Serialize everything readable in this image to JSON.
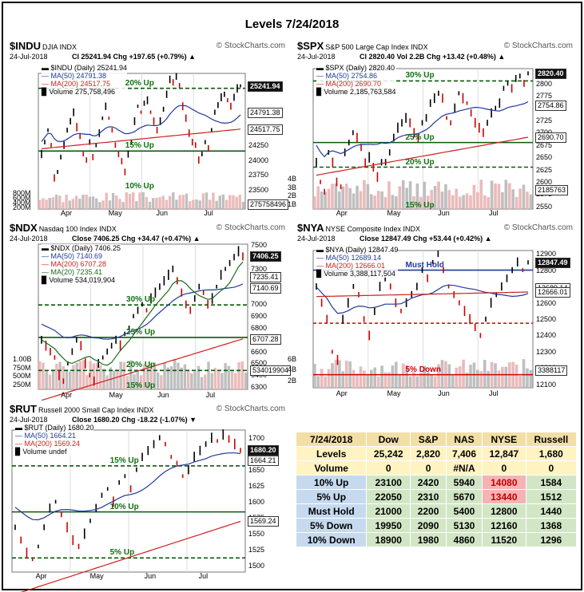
{
  "title": "Levels 7/24/2018",
  "charts": [
    {
      "id": "indu",
      "symbol": "$INDU",
      "name": "DJIA INDX",
      "brand": "© StockCharts.com",
      "date": "24-Jul-2018",
      "quote": "Cl 25241.94  Chg +197.65 (+0.79%) ▲",
      "legend": [
        "▬ $INDU (Daily) 25241.94",
        "— MA(50) 24791.38",
        "— MA(200) 24517.75",
        "▉ Volume 275,758,496"
      ],
      "months": [
        "Apr",
        "May",
        "Jun",
        "Jul"
      ],
      "yticks": [
        "24250",
        "24000",
        "23750",
        "23500"
      ],
      "vol_ticks": [
        "800M",
        "600M",
        "400M",
        "200M"
      ],
      "tags": [
        "25241.94",
        "24791.38",
        "24517.75",
        "275758496"
      ],
      "levels": [
        {
          "label": "20% Up"
        },
        {
          "label": "15% Up"
        },
        {
          "label": "10% Up"
        }
      ],
      "colors": {
        "price": "#000000",
        "up": "#000000",
        "down": "#cc0000",
        "ma50": "#1f3a9a",
        "ma200": "#cc2020",
        "level": "#0a5a0a"
      }
    },
    {
      "id": "spx",
      "symbol": "$SPX",
      "name": "S&P 500 Large Cap Index INDX",
      "brand": "© StockCharts.com",
      "date": "24-Jul-2018",
      "quote": "Cl 2820.40  Vol 2.2B  Chg +13.42 (+0.48%) ▲",
      "legend": [
        "▬ $SPX (Daily) 2820.40",
        "— MA(50) 2754.86",
        "— MA(200) 2690.70",
        "▉ Volume 2,185,763,584"
      ],
      "months": [
        "Apr",
        "May",
        "Jun",
        "Jul"
      ],
      "yticks": [
        "2800",
        "2775",
        "2725",
        "2700",
        "2675",
        "2650",
        "2625",
        "2600",
        "2575",
        "2550"
      ],
      "vol_ticks": [
        "4B",
        "3B",
        "2B",
        "1B"
      ],
      "tags": [
        "2820.40",
        "2754.86",
        "2690.70",
        "2185763"
      ],
      "levels": [
        {
          "label": "30% Up"
        },
        {
          "label": "25% Up"
        },
        {
          "label": "20% Up"
        },
        {
          "label": "15% Up"
        }
      ],
      "colors": {
        "price": "#000000",
        "up": "#000000",
        "down": "#cc0000",
        "ma50": "#1f3a9a",
        "ma200": "#cc2020",
        "level": "#0a5a0a"
      }
    },
    {
      "id": "ndx",
      "symbol": "$NDX",
      "name": "Nasdaq 100 Index INDX",
      "brand": "© StockCharts.com",
      "date": "24-Jul-2018",
      "quote": "Close 7406.25  Chg +34.47 (+0.47%) ▲",
      "legend": [
        "▬ $NDX (Daily) 7406.25",
        "— MA(50) 7140.69",
        "— MA(200) 6707.28",
        "— MA(20) 7235.41",
        "▉ Volume 534,019,904"
      ],
      "months": [
        "Apr",
        "May",
        "Jun",
        "Jul"
      ],
      "yticks": [
        "7500",
        "7300",
        "7000",
        "6900",
        "6800",
        "6600",
        "6500",
        "6400",
        "6300"
      ],
      "vol_ticks": [
        "1.00B",
        "750M",
        "500M",
        "250M"
      ],
      "tags": [
        "7406.25",
        "7235.41",
        "7140.69",
        "6707.28",
        "534019904"
      ],
      "levels": [
        {
          "label": "30% Up"
        },
        {
          "label": "25% Up"
        },
        {
          "label": "20% Up"
        },
        {
          "label": "15% Up"
        }
      ],
      "colors": {
        "price": "#000000",
        "up": "#000000",
        "down": "#cc0000",
        "ma50": "#1f3a9a",
        "ma200": "#cc2020",
        "ma20": "#1a6a1a",
        "level": "#0a5a0a"
      }
    },
    {
      "id": "nya",
      "symbol": "$NYA",
      "name": "NYSE Composite Index INDX",
      "brand": "© StockCharts.com",
      "date": "24-Jul-2018",
      "quote": "Close 12847.49  Chg +53.44 (+0.42%) ▲",
      "legend": [
        "▬ $NYA (Daily) 12847.49",
        "— MA(50) 12689.14",
        "— MA(200) 12666.01",
        "▉ Volume 3,388,117,504"
      ],
      "months": [
        "Apr",
        "May",
        "Jun",
        "Jul"
      ],
      "yticks": [
        "12900",
        "12800",
        "12700",
        "12600",
        "12500",
        "12400",
        "12300",
        "12200",
        "12100"
      ],
      "vol_ticks": [
        "6B",
        "4B",
        "2B"
      ],
      "tags": [
        "12847.49",
        "12689.14",
        "12666.01",
        "3388117"
      ],
      "levels": [
        {
          "label": "Must Hold"
        },
        {
          "label": "5% Down"
        }
      ],
      "colors": {
        "price": "#000000",
        "up": "#000000",
        "down": "#cc0000",
        "ma50": "#1f3a9a",
        "ma200": "#cc2020",
        "level": "#0a5a0a",
        "mustHold": "#1f3a9a",
        "down5": "#cc0000"
      }
    },
    {
      "id": "rut",
      "symbol": "$RUT",
      "name": "Russell 2000 Small Cap Index INDX",
      "brand": "© StockCharts.com",
      "date": "24-Jul-2018",
      "quote": "Close 1680.20  Chg -18.22 (-1.07%) ▼",
      "legend": [
        "▬ $RUT (Daily) 1680.20",
        "— MA(50) 1664.21",
        "— MA(200) 1569.24",
        "▉ Volume undef"
      ],
      "months": [
        "Apr",
        "May",
        "Jun",
        "Jul"
      ],
      "yticks": [
        "1700",
        "1650",
        "1625",
        "1600",
        "1575",
        "1550",
        "1525",
        "1500"
      ],
      "vol_ticks": [],
      "tags": [
        "1680.20",
        "1664.21",
        "1569.24"
      ],
      "levels": [
        {
          "label": "15% Up"
        },
        {
          "label": "10% Up"
        },
        {
          "label": "5% Up"
        }
      ],
      "colors": {
        "price": "#000000",
        "up": "#000000",
        "down": "#cc0000",
        "ma50": "#1f3a9a",
        "ma200": "#cc2020",
        "level": "#0a5a0a"
      }
    }
  ],
  "chart_data": [
    {
      "type": "line",
      "symbol": "$INDU",
      "period": "Daily",
      "ylim": [
        23500,
        25450
      ],
      "last": 25241.94,
      "ma50": 24791.38,
      "ma200": 24517.75,
      "levels": [
        {
          "name": "20% Up",
          "value": 25200
        },
        {
          "name": "15% Up",
          "value": 24150
        },
        {
          "name": "10% Up",
          "value": 23100
        }
      ],
      "close": [
        24100,
        24300,
        24500,
        24250,
        23700,
        23800,
        24050,
        24250,
        24500,
        24650,
        24800,
        24550,
        24400,
        24100,
        24000,
        24300,
        24050,
        24250,
        24450,
        24700,
        24900,
        24700,
        24500,
        24250,
        24100,
        23980,
        23800,
        24100,
        24300,
        24650,
        24900,
        24800,
        24950,
        25000,
        24800,
        24650,
        24500,
        24650,
        24850,
        25100,
        25350,
        25300,
        25400,
        25250,
        24900,
        24700,
        24450,
        24300,
        24250,
        24000,
        24100,
        24300,
        24200,
        24500,
        24800,
        24920,
        25050,
        25100,
        25000,
        24900,
        25050,
        25200,
        25241.94
      ]
    },
    {
      "type": "line",
      "symbol": "$SPX",
      "period": "Daily",
      "ylim": [
        2545,
        2830
      ],
      "last": 2820.4,
      "ma50": 2754.86,
      "ma200": 2690.7,
      "levels": [
        {
          "name": "30% Up",
          "value": 2805
        },
        {
          "name": "25% Up",
          "value": 2680
        },
        {
          "name": "20% Up",
          "value": 2630
        },
        {
          "name": "15% Up",
          "value": 2510
        }
      ],
      "close": [
        2640,
        2600,
        2580,
        2660,
        2640,
        2600,
        2590,
        2660,
        2680,
        2700,
        2690,
        2670,
        2640,
        2650,
        2630,
        2610,
        2640,
        2640,
        2660,
        2690,
        2710,
        2720,
        2730,
        2720,
        2700,
        2690,
        2720,
        2730,
        2760,
        2770,
        2780,
        2770,
        2730,
        2720,
        2750,
        2780,
        2770,
        2760,
        2740,
        2720,
        2710,
        2700,
        2720,
        2740,
        2750,
        2760,
        2790,
        2800,
        2790,
        2810,
        2815,
        2800,
        2820.4
      ]
    },
    {
      "type": "line",
      "symbol": "$NDX",
      "period": "Daily",
      "ylim": [
        6280,
        7510
      ],
      "last": 7406.25,
      "ma20": 7235.41,
      "ma50": 7140.69,
      "ma200": 6707.28,
      "levels": [
        {
          "name": "30% Up",
          "value": 6995
        },
        {
          "name": "25% Up",
          "value": 6720
        },
        {
          "name": "20% Up",
          "value": 6440
        },
        {
          "name": "15% Up",
          "value": 6170
        }
      ],
      "close": [
        6700,
        6650,
        6600,
        6550,
        6400,
        6350,
        6500,
        6600,
        6700,
        6650,
        6500,
        6400,
        6350,
        6500,
        6550,
        6600,
        6650,
        6700,
        6650,
        6750,
        6800,
        6900,
        6950,
        7000,
        6950,
        7050,
        7100,
        7150,
        7200,
        7250,
        7300,
        7200,
        7100,
        7000,
        6950,
        7050,
        7150,
        7100,
        7000,
        7050,
        7150,
        7250,
        7300,
        7350,
        7400,
        7450,
        7406.25
      ]
    },
    {
      "type": "line",
      "symbol": "$NYA",
      "period": "Daily",
      "ylim": [
        12080,
        12920
      ],
      "last": 12847.49,
      "ma50": 12689.14,
      "ma200": 12666.01,
      "levels": [
        {
          "name": "Must Hold",
          "value": 12800
        },
        {
          "name": "5% Down",
          "value": 12160
        }
      ],
      "close": [
        12700,
        12600,
        12500,
        12300,
        12250,
        12500,
        12600,
        12700,
        12650,
        12500,
        12400,
        12550,
        12700,
        12750,
        12700,
        12600,
        12550,
        12600,
        12650,
        12700,
        12800,
        12750,
        12850,
        12900,
        12800,
        12700,
        12650,
        12600,
        12550,
        12500,
        12450,
        12400,
        12500,
        12600,
        12650,
        12700,
        12750,
        12800,
        12850,
        12800,
        12847.49
      ]
    },
    {
      "type": "line",
      "symbol": "$RUT",
      "period": "Daily",
      "ylim": [
        1490,
        1712
      ],
      "last": 1680.2,
      "ma50": 1664.21,
      "ma200": 1569.24,
      "levels": [
        {
          "name": "15% Up",
          "value": 1656
        },
        {
          "name": "10% Up",
          "value": 1584
        },
        {
          "name": "5% Up",
          "value": 1512
        }
      ],
      "close": [
        1560,
        1540,
        1520,
        1510,
        1530,
        1560,
        1590,
        1600,
        1580,
        1560,
        1540,
        1530,
        1550,
        1570,
        1590,
        1610,
        1620,
        1600,
        1630,
        1640,
        1620,
        1650,
        1670,
        1680,
        1690,
        1700,
        1690,
        1670,
        1660,
        1640,
        1650,
        1670,
        1680,
        1690,
        1700,
        1695,
        1705,
        1698,
        1690,
        1680.2
      ]
    },
    {
      "type": "table",
      "title": "7/24/2018",
      "columns": [
        "Dow",
        "S&P",
        "NAS",
        "NYSE",
        "Russell"
      ],
      "rows": [
        {
          "label": "Levels",
          "values": [
            "25,242",
            "2,820",
            "7,406",
            "12,847",
            "1,680"
          ]
        },
        {
          "label": "Volume",
          "values": [
            "0",
            "0",
            "#N/A",
            "0",
            "0"
          ]
        },
        {
          "label": "10% Up",
          "values": [
            "23100",
            "2420",
            "5940",
            "14080",
            "1584"
          ]
        },
        {
          "label": "5% Up",
          "values": [
            "22050",
            "2310",
            "5670",
            "13440",
            "1512"
          ]
        },
        {
          "label": "Must Hold",
          "values": [
            "21000",
            "2200",
            "5400",
            "12800",
            "1440"
          ]
        },
        {
          "label": "5% Down",
          "values": [
            "19950",
            "2090",
            "5130",
            "12160",
            "1368"
          ]
        },
        {
          "label": "10% Down",
          "values": [
            "18900",
            "1980",
            "4860",
            "11520",
            "1296"
          ]
        }
      ]
    }
  ]
}
